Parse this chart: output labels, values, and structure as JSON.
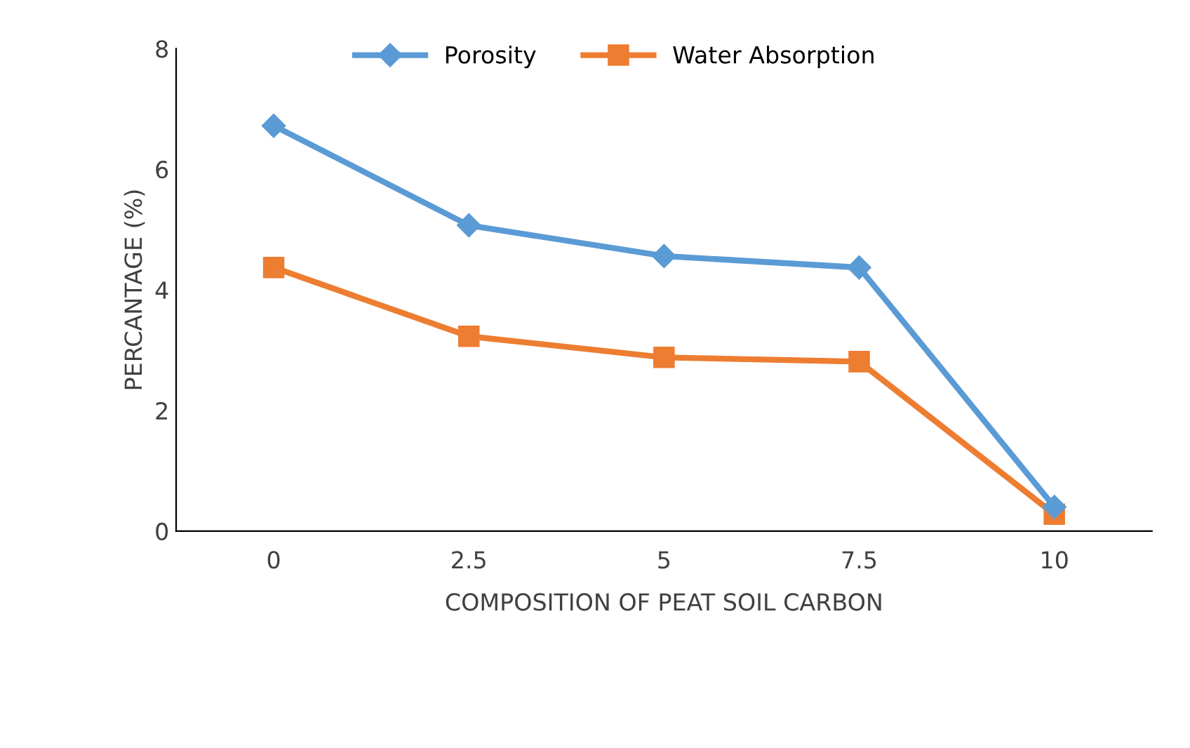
{
  "chart_data": {
    "type": "line",
    "xlabel": "COMPOSITION OF PEAT SOIL CARBON",
    "ylabel": "PERCANTAGE (%)",
    "categories": [
      "0",
      "2.5",
      "5",
      "7.5",
      "10"
    ],
    "series": [
      {
        "name": "Porosity",
        "color": "#5b9bd5",
        "marker": "diamond",
        "values": [
          6.72,
          5.07,
          4.56,
          4.37,
          0.4
        ]
      },
      {
        "name": "Water Absorption",
        "color": "#ed7d31",
        "marker": "square",
        "values": [
          4.37,
          3.23,
          2.88,
          2.81,
          0.28
        ]
      }
    ],
    "ylim": [
      0,
      8
    ],
    "yticks": [
      0,
      2,
      4,
      6,
      8
    ],
    "grid": false,
    "legend": "top",
    "line_style": "solid"
  }
}
